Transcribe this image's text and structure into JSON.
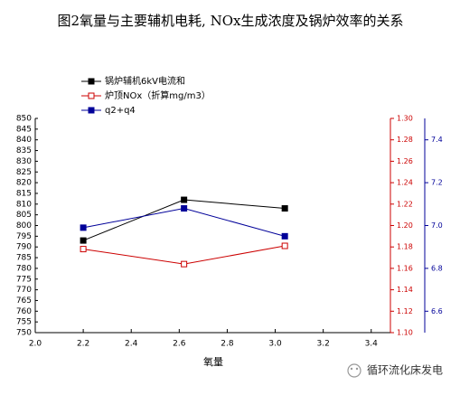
{
  "chart_data": {
    "type": "line",
    "title": "图2氧量与主要辅机电耗, NOx生成浓度及锅炉效率的关系",
    "x_label": "氧量",
    "watermark": "循环流化床发电",
    "x": [
      2.2,
      2.62,
      3.04
    ],
    "xlim": [
      2.0,
      3.48
    ],
    "xticks": [
      {
        "value": 2,
        "label": "2.0"
      },
      2.2,
      2.4,
      2.6,
      2.8,
      {
        "value": 3,
        "label": "3.0"
      },
      3.2,
      3.4
    ],
    "ylim": [
      750,
      850
    ],
    "yticks": [
      750,
      755,
      760,
      765,
      770,
      775,
      780,
      785,
      790,
      795,
      800,
      805,
      810,
      815,
      820,
      825,
      830,
      835,
      840,
      845,
      850
    ],
    "y2lim": [
      1.1,
      1.3
    ],
    "y2ticks": [
      {
        "value": 1.1,
        "label": "1.10"
      },
      1.12,
      1.14,
      1.16,
      1.18,
      {
        "value": 1.2,
        "label": "1.20"
      },
      1.22,
      1.24,
      1.26,
      1.28,
      {
        "value": 1.3,
        "label": "1.30"
      }
    ],
    "y3lim": [
      6.5,
      7.5
    ],
    "y3ticks": [
      6.6,
      6.8,
      {
        "value": 7,
        "label": "7.0"
      },
      7.2,
      7.4
    ],
    "series": [
      {
        "name": "锅炉辅机6kV电流和",
        "color": "#000000",
        "marker": "filled",
        "axis": "y",
        "values": [
          793,
          812,
          808
        ]
      },
      {
        "name": "炉顶NOx（折算mg/m3）",
        "color": "#cc0000",
        "marker": "hollow",
        "axis": "y2",
        "values": [
          1.178,
          1.164,
          1.181
        ]
      },
      {
        "name": "q2+q4",
        "color": "#000099",
        "marker": "filled",
        "axis": "y3",
        "values": [
          6.99,
          7.08,
          6.95
        ]
      }
    ]
  }
}
